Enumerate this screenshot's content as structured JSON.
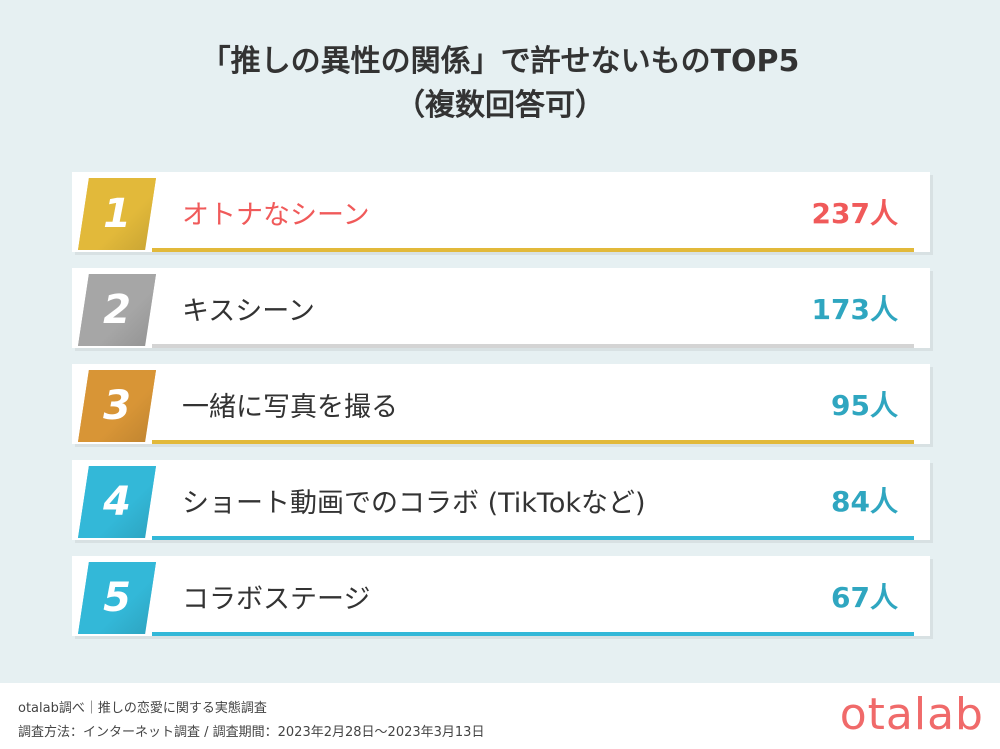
{
  "title_line1": "「推しの異性の関係」で許せないものTOP5",
  "title_line2": "（複数回答可）",
  "chart_data": {
    "type": "table",
    "title": "「推しの異性の関係」で許せないものTOP5（複数回答可）",
    "unit": "人",
    "rows": [
      {
        "rank": "1",
        "label": "オトナなシーン",
        "value": 237,
        "value_text": "237人"
      },
      {
        "rank": "2",
        "label": "キスシーン",
        "value": 173,
        "value_text": "173人"
      },
      {
        "rank": "3",
        "label": "一緒に写真を撮る",
        "value": 95,
        "value_text": "95人"
      },
      {
        "rank": "4",
        "label": "ショート動画でのコラボ (TikTokなど)",
        "value": 84,
        "value_text": "84人"
      },
      {
        "rank": "5",
        "label": "コラボステージ",
        "value": 67,
        "value_text": "67人"
      }
    ]
  },
  "colors": {
    "gold": "#e2b93a",
    "silver": "#a6a6a6",
    "bronze": "#d89536",
    "blue": "#33b8d8",
    "highlight_text": "#f05a5a",
    "value_text": "#2fa6c0"
  },
  "footer": {
    "source": "otalab調べ｜推しの恋愛に関する実態調査",
    "method": "調査方法：インターネット調査 / 調査期間：2023年2月28日〜2023年3月13日",
    "logo": "otalab"
  }
}
